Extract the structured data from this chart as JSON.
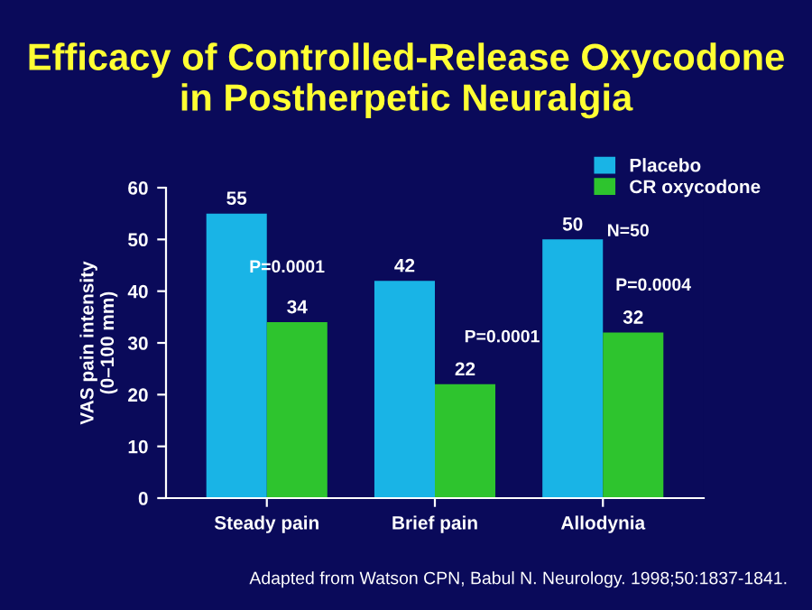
{
  "chart_data": {
    "type": "bar",
    "title": "Efficacy of Controlled-Release Oxycodone\nin Postherpetic Neuralgia",
    "ylabel": "VAS pain intensity\n(0–100 mm)",
    "categories": [
      "Steady pain",
      "Brief pain",
      "Allodynia"
    ],
    "series": [
      {
        "name": "Placebo",
        "color": "#19b4e6",
        "values": [
          55,
          42,
          50
        ]
      },
      {
        "name": "CR oxycodone",
        "color": "#2ec42e",
        "values": [
          34,
          22,
          32
        ]
      }
    ],
    "ylim": [
      0,
      60
    ],
    "yticks": [
      0,
      10,
      20,
      30,
      40,
      50,
      60
    ],
    "data_labels": true,
    "legend": "top right",
    "grid": false,
    "annotations": [
      "P=0.0001",
      "P=0.0001",
      "P=0.0004",
      "N=50",
      "Adapted from Watson CPN, Babul N. Neurology. 1998;50:1837-1841."
    ]
  }
}
